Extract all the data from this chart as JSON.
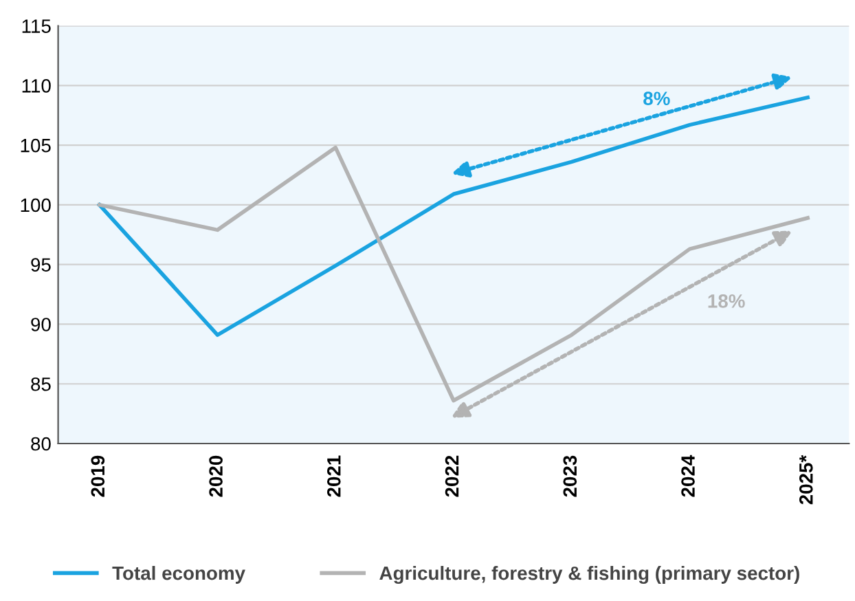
{
  "chart_data": {
    "type": "line",
    "categories": [
      "2019",
      "2020",
      "2021",
      "2022",
      "2023",
      "2024",
      "2025*"
    ],
    "series": [
      {
        "name": "Total economy",
        "color": "#1aa3e0",
        "values": [
          100,
          89.1,
          94.9,
          100.9,
          103.6,
          106.7,
          109.0
        ]
      },
      {
        "name": "Agriculture, forestry & fishing (primary sector)",
        "color": "#b3b3b3",
        "values": [
          100,
          97.9,
          104.8,
          83.6,
          89.1,
          96.3,
          98.9
        ]
      }
    ],
    "ylim": [
      80,
      115
    ],
    "yticks": [
      80,
      85,
      90,
      95,
      100,
      105,
      110,
      115
    ],
    "grid": "y",
    "legend": "bottom",
    "marker": "none",
    "line_style": "solid",
    "annotations": [
      "8%",
      "18%"
    ]
  }
}
